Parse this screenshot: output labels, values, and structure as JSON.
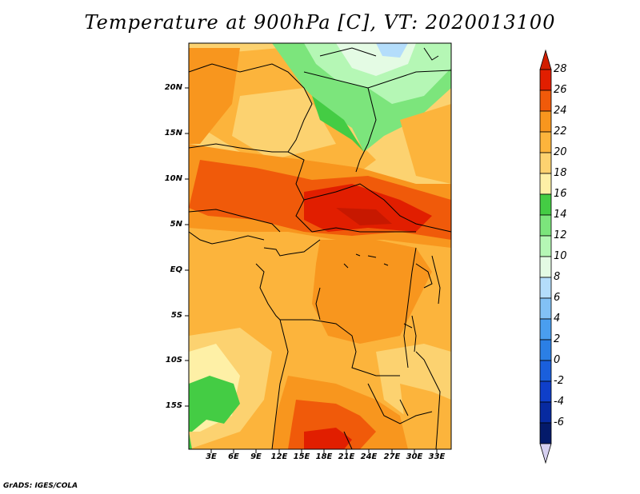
{
  "title": "Temperature at 900hPa [C], VT: 2020013100",
  "credit": "GrADS: IGES/COLA",
  "map": {
    "lat_labels": [
      "20N",
      "15N",
      "10N",
      "5N",
      "EQ",
      "5S",
      "10S",
      "15S"
    ],
    "lon_labels": [
      "3E",
      "6E",
      "9E",
      "12E",
      "15E",
      "18E",
      "21E",
      "24E",
      "27E",
      "30E",
      "33E"
    ]
  },
  "colorbar": {
    "labels": [
      "28",
      "26",
      "24",
      "22",
      "20",
      "18",
      "16",
      "14",
      "12",
      "10",
      "8",
      "6",
      "4",
      "2",
      "0",
      "-2",
      "-4",
      "-6"
    ],
    "colors": [
      "#e11e00",
      "#f05a0a",
      "#f8961e",
      "#fcb43c",
      "#fcd270",
      "#fef0a6",
      "#44cc44",
      "#7ce57c",
      "#b5f7b5",
      "#e4fbe4",
      "#b4ddfb",
      "#82c1f5",
      "#4a9eef",
      "#2b7fe5",
      "#1a5fdc",
      "#0f3fc9",
      "#072aa0",
      "#041a6a"
    ],
    "top_arrow_color": "#d21e00",
    "bottom_arrow_color": "#d6d0f0"
  }
}
